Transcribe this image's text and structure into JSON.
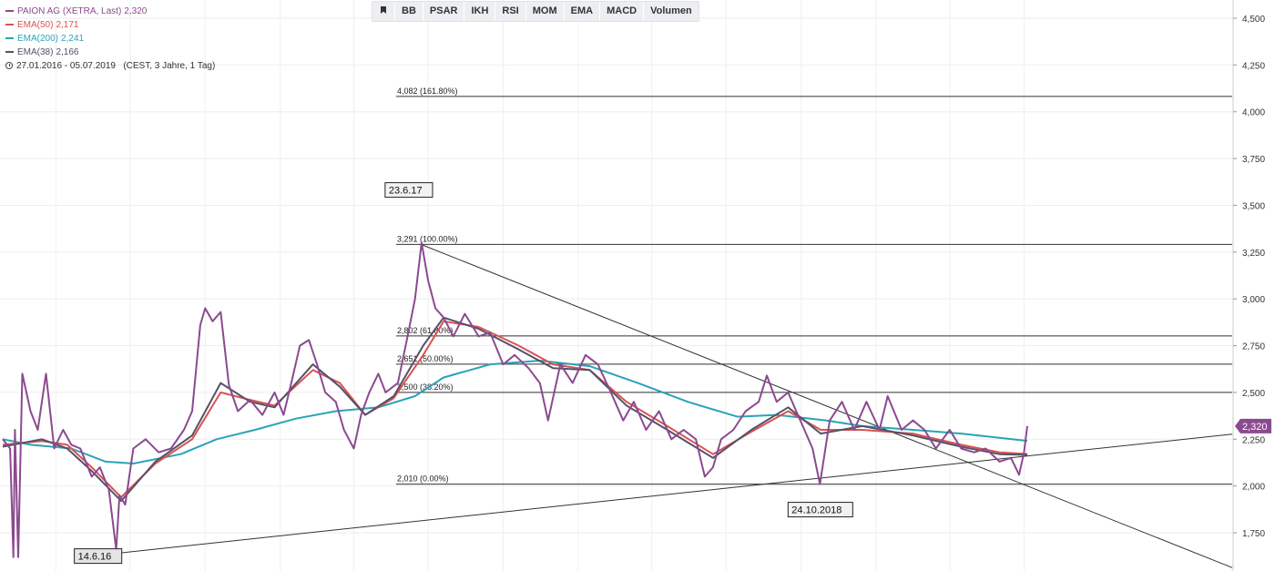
{
  "legend": {
    "instrument": {
      "label": "PAION AG (XETRA, Last)",
      "value": "2,320",
      "color": "#8b4a8f"
    },
    "ema50": {
      "label": "EMA(50)",
      "value": "2,171",
      "color": "#d9534f"
    },
    "ema200": {
      "label": "EMA(200)",
      "value": "2,241",
      "color": "#2aa3b8"
    },
    "ema38": {
      "label": "EMA(38)",
      "value": "2,166",
      "color": "#55506a"
    },
    "period": "27.01.2016 - 05.07.2019   (CEST, 3 Jahre, 1 Tag)"
  },
  "toolbar": {
    "flag_icon": "bookmark-flag-icon",
    "buttons": [
      "BB",
      "PSAR",
      "IKH",
      "RSI",
      "MOM",
      "EMA",
      "MACD",
      "Volumen"
    ]
  },
  "chart_data": {
    "type": "line",
    "x_range": [
      "2016-01-27",
      "2019-07-05"
    ],
    "ylim": [
      1.58,
      4.58
    ],
    "y_ticks": [
      "1,750",
      "2,000",
      "2,250",
      "2,500",
      "2,750",
      "3,000",
      "3,250",
      "3,500",
      "3,750",
      "4,000",
      "4,250",
      "4,500"
    ],
    "y_tick_values": [
      1.75,
      2.0,
      2.25,
      2.5,
      2.75,
      3.0,
      3.25,
      3.5,
      3.75,
      4.0,
      4.25,
      4.5
    ],
    "last_price_label": "2,320",
    "last_price": 2.32,
    "grid": true,
    "series": [
      {
        "key": "price",
        "color": "#8b4a8f",
        "width": 2,
        "points": [
          [
            "2016-01-27",
            2.25
          ],
          [
            "2016-02-05",
            2.2
          ],
          [
            "2016-02-09",
            1.62
          ],
          [
            "2016-02-11",
            2.3
          ],
          [
            "2016-02-15",
            1.62
          ],
          [
            "2016-02-20",
            2.6
          ],
          [
            "2016-03-01",
            2.4
          ],
          [
            "2016-03-10",
            2.3
          ],
          [
            "2016-03-20",
            2.6
          ],
          [
            "2016-03-30",
            2.2
          ],
          [
            "2016-04-10",
            2.3
          ],
          [
            "2016-04-20",
            2.22
          ],
          [
            "2016-05-01",
            2.2
          ],
          [
            "2016-05-15",
            2.05
          ],
          [
            "2016-05-25",
            2.1
          ],
          [
            "2016-06-05",
            1.98
          ],
          [
            "2016-06-14",
            1.66
          ],
          [
            "2016-06-18",
            1.95
          ],
          [
            "2016-06-25",
            1.9
          ],
          [
            "2016-07-05",
            2.2
          ],
          [
            "2016-07-20",
            2.25
          ],
          [
            "2016-08-05",
            2.18
          ],
          [
            "2016-08-20",
            2.2
          ],
          [
            "2016-09-05",
            2.3
          ],
          [
            "2016-09-15",
            2.4
          ],
          [
            "2016-09-25",
            2.86
          ],
          [
            "2016-10-01",
            2.95
          ],
          [
            "2016-10-10",
            2.88
          ],
          [
            "2016-10-20",
            2.93
          ],
          [
            "2016-10-30",
            2.54
          ],
          [
            "2016-11-10",
            2.4
          ],
          [
            "2016-11-25",
            2.46
          ],
          [
            "2016-12-10",
            2.38
          ],
          [
            "2016-12-25",
            2.5
          ],
          [
            "2017-01-05",
            2.38
          ],
          [
            "2017-01-15",
            2.56
          ],
          [
            "2017-01-25",
            2.75
          ],
          [
            "2017-02-05",
            2.78
          ],
          [
            "2017-02-15",
            2.65
          ],
          [
            "2017-02-25",
            2.5
          ],
          [
            "2017-03-10",
            2.45
          ],
          [
            "2017-03-20",
            2.3
          ],
          [
            "2017-04-01",
            2.2
          ],
          [
            "2017-04-10",
            2.38
          ],
          [
            "2017-04-20",
            2.5
          ],
          [
            "2017-05-01",
            2.6
          ],
          [
            "2017-05-10",
            2.5
          ],
          [
            "2017-05-25",
            2.55
          ],
          [
            "2017-06-05",
            2.78
          ],
          [
            "2017-06-15",
            3.0
          ],
          [
            "2017-06-23",
            3.3
          ],
          [
            "2017-07-01",
            3.1
          ],
          [
            "2017-07-10",
            2.95
          ],
          [
            "2017-07-20",
            2.9
          ],
          [
            "2017-08-01",
            2.8
          ],
          [
            "2017-08-15",
            2.92
          ],
          [
            "2017-09-01",
            2.8
          ],
          [
            "2017-09-15",
            2.82
          ],
          [
            "2017-10-01",
            2.65
          ],
          [
            "2017-10-15",
            2.7
          ],
          [
            "2017-11-01",
            2.63
          ],
          [
            "2017-11-15",
            2.55
          ],
          [
            "2017-11-25",
            2.35
          ],
          [
            "2017-12-10",
            2.65
          ],
          [
            "2017-12-25",
            2.55
          ],
          [
            "2018-01-10",
            2.7
          ],
          [
            "2018-01-25",
            2.65
          ],
          [
            "2018-02-10",
            2.5
          ],
          [
            "2018-02-25",
            2.35
          ],
          [
            "2018-03-10",
            2.45
          ],
          [
            "2018-03-25",
            2.3
          ],
          [
            "2018-04-10",
            2.4
          ],
          [
            "2018-04-25",
            2.25
          ],
          [
            "2018-05-10",
            2.3
          ],
          [
            "2018-05-25",
            2.25
          ],
          [
            "2018-06-05",
            2.05
          ],
          [
            "2018-06-15",
            2.1
          ],
          [
            "2018-06-25",
            2.25
          ],
          [
            "2018-07-10",
            2.3
          ],
          [
            "2018-07-25",
            2.4
          ],
          [
            "2018-08-10",
            2.45
          ],
          [
            "2018-08-20",
            2.59
          ],
          [
            "2018-09-01",
            2.45
          ],
          [
            "2018-09-15",
            2.5
          ],
          [
            "2018-09-25",
            2.4
          ],
          [
            "2018-10-05",
            2.3
          ],
          [
            "2018-10-15",
            2.2
          ],
          [
            "2018-10-24",
            2.01
          ],
          [
            "2018-11-05",
            2.35
          ],
          [
            "2018-11-20",
            2.45
          ],
          [
            "2018-12-05",
            2.3
          ],
          [
            "2018-12-20",
            2.45
          ],
          [
            "2019-01-05",
            2.3
          ],
          [
            "2019-01-15",
            2.48
          ],
          [
            "2019-02-01",
            2.3
          ],
          [
            "2019-02-15",
            2.35
          ],
          [
            "2019-03-01",
            2.3
          ],
          [
            "2019-03-15",
            2.2
          ],
          [
            "2019-04-01",
            2.3
          ],
          [
            "2019-04-15",
            2.2
          ],
          [
            "2019-05-01",
            2.18
          ],
          [
            "2019-05-15",
            2.2
          ],
          [
            "2019-06-01",
            2.13
          ],
          [
            "2019-06-15",
            2.15
          ],
          [
            "2019-06-25",
            2.06
          ],
          [
            "2019-07-01",
            2.18
          ],
          [
            "2019-07-05",
            2.32
          ]
        ]
      },
      {
        "key": "ema50",
        "color": "#d9534f",
        "width": 2,
        "points": [
          [
            "2016-01-27",
            2.22
          ],
          [
            "2016-03-15",
            2.24
          ],
          [
            "2016-04-15",
            2.22
          ],
          [
            "2016-05-15",
            2.1
          ],
          [
            "2016-06-20",
            1.94
          ],
          [
            "2016-08-01",
            2.12
          ],
          [
            "2016-09-15",
            2.25
          ],
          [
            "2016-10-20",
            2.5
          ],
          [
            "2016-11-25",
            2.46
          ],
          [
            "2016-12-25",
            2.43
          ],
          [
            "2017-02-10",
            2.62
          ],
          [
            "2017-03-15",
            2.55
          ],
          [
            "2017-04-15",
            2.38
          ],
          [
            "2017-05-20",
            2.47
          ],
          [
            "2017-06-25",
            2.7
          ],
          [
            "2017-07-20",
            2.88
          ],
          [
            "2017-09-01",
            2.85
          ],
          [
            "2017-10-20",
            2.75
          ],
          [
            "2017-12-01",
            2.65
          ],
          [
            "2018-01-15",
            2.62
          ],
          [
            "2018-03-01",
            2.45
          ],
          [
            "2018-04-20",
            2.32
          ],
          [
            "2018-06-15",
            2.17
          ],
          [
            "2018-08-01",
            2.29
          ],
          [
            "2018-09-15",
            2.4
          ],
          [
            "2018-10-25",
            2.3
          ],
          [
            "2018-12-15",
            2.3
          ],
          [
            "2019-02-15",
            2.28
          ],
          [
            "2019-04-15",
            2.22
          ],
          [
            "2019-06-01",
            2.18
          ],
          [
            "2019-07-05",
            2.171
          ]
        ]
      },
      {
        "key": "ema200",
        "color": "#2aa3b8",
        "width": 2,
        "points": [
          [
            "2016-01-27",
            2.25
          ],
          [
            "2016-03-01",
            2.22
          ],
          [
            "2016-04-20",
            2.2
          ],
          [
            "2016-06-01",
            2.13
          ],
          [
            "2016-07-05",
            2.12
          ],
          [
            "2016-09-01",
            2.17
          ],
          [
            "2016-10-15",
            2.25
          ],
          [
            "2016-12-01",
            2.3
          ],
          [
            "2017-01-20",
            2.36
          ],
          [
            "2017-03-10",
            2.4
          ],
          [
            "2017-05-01",
            2.42
          ],
          [
            "2017-06-15",
            2.48
          ],
          [
            "2017-07-20",
            2.58
          ],
          [
            "2017-09-15",
            2.65
          ],
          [
            "2017-11-15",
            2.67
          ],
          [
            "2018-01-15",
            2.64
          ],
          [
            "2018-03-15",
            2.55
          ],
          [
            "2018-05-15",
            2.45
          ],
          [
            "2018-07-15",
            2.37
          ],
          [
            "2018-09-01",
            2.38
          ],
          [
            "2018-11-01",
            2.35
          ],
          [
            "2018-12-15",
            2.32
          ],
          [
            "2019-02-15",
            2.3
          ],
          [
            "2019-04-15",
            2.28
          ],
          [
            "2019-07-05",
            2.241
          ]
        ]
      },
      {
        "key": "ema38",
        "color": "#55506a",
        "width": 2,
        "points": [
          [
            "2016-01-27",
            2.21
          ],
          [
            "2016-03-15",
            2.25
          ],
          [
            "2016-04-15",
            2.2
          ],
          [
            "2016-05-15",
            2.08
          ],
          [
            "2016-06-20",
            1.92
          ],
          [
            "2016-08-01",
            2.13
          ],
          [
            "2016-09-15",
            2.27
          ],
          [
            "2016-10-20",
            2.55
          ],
          [
            "2016-11-25",
            2.45
          ],
          [
            "2016-12-25",
            2.42
          ],
          [
            "2017-02-10",
            2.65
          ],
          [
            "2017-03-15",
            2.53
          ],
          [
            "2017-04-15",
            2.38
          ],
          [
            "2017-05-20",
            2.48
          ],
          [
            "2017-06-25",
            2.75
          ],
          [
            "2017-07-20",
            2.9
          ],
          [
            "2017-09-01",
            2.84
          ],
          [
            "2017-10-20",
            2.73
          ],
          [
            "2017-12-01",
            2.63
          ],
          [
            "2018-01-15",
            2.62
          ],
          [
            "2018-03-01",
            2.43
          ],
          [
            "2018-04-20",
            2.3
          ],
          [
            "2018-06-15",
            2.15
          ],
          [
            "2018-08-01",
            2.3
          ],
          [
            "2018-09-15",
            2.42
          ],
          [
            "2018-10-25",
            2.28
          ],
          [
            "2018-12-15",
            2.32
          ],
          [
            "2019-02-15",
            2.27
          ],
          [
            "2019-04-15",
            2.21
          ],
          [
            "2019-06-01",
            2.17
          ],
          [
            "2019-07-05",
            2.166
          ]
        ]
      }
    ],
    "fibonacci": [
      {
        "value": 4.082,
        "label": "4,082 (161.80%)"
      },
      {
        "value": 3.291,
        "label": "3,291 (100.00%)"
      },
      {
        "value": 2.802,
        "label": "2,802 (61.80%)"
      },
      {
        "value": 2.651,
        "label": "2,651 (50.00%)"
      },
      {
        "value": 2.5,
        "label": "2,500 (38.20%)"
      },
      {
        "value": 2.01,
        "label": "2,010 (0.00%)"
      }
    ],
    "trendlines": [
      {
        "from": [
          "2017-06-23",
          3.29
        ],
        "to": [
          "2019-07-05",
          2.0
        ]
      },
      {
        "from": [
          "2016-06-14",
          1.64
        ],
        "to": [
          "2019-07-05",
          2.16
        ]
      }
    ],
    "annotations": [
      {
        "text": "23.6.17",
        "x": "2017-06-23",
        "y": 3.29
      },
      {
        "text": "14.6.16",
        "x": "2016-06-14",
        "y": 1.64
      },
      {
        "text": "24.10.2018",
        "x": "2018-10-24",
        "y": 2.01
      }
    ],
    "xlabel": "",
    "ylabel": ""
  }
}
